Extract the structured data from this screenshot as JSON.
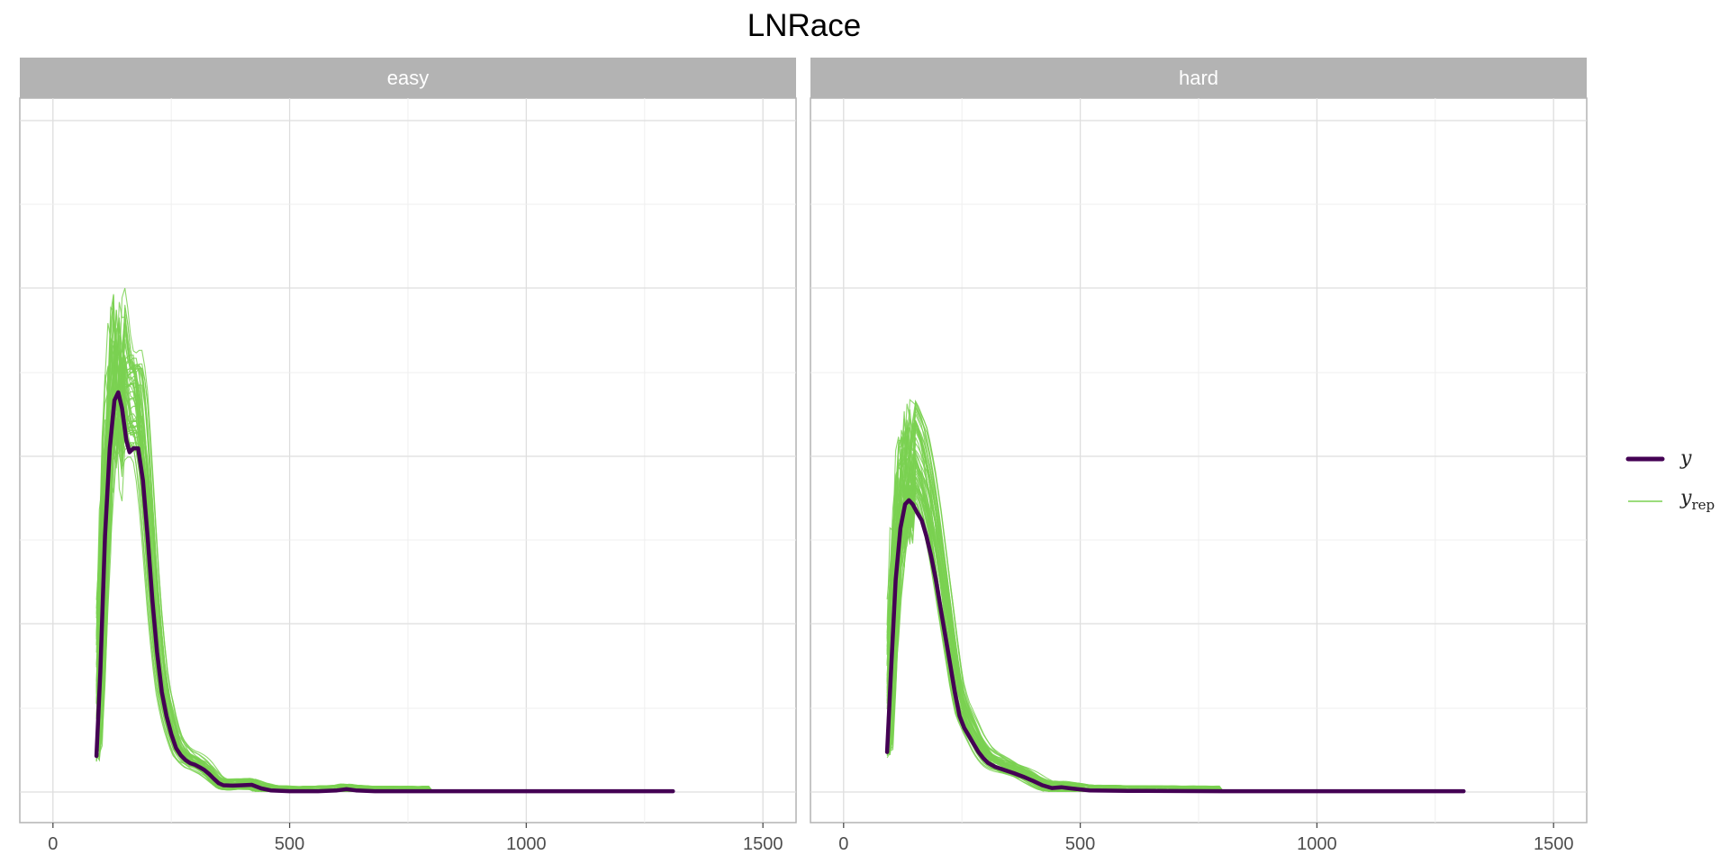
{
  "chart_data": {
    "type": "line",
    "title": "LNRace",
    "xlabel": "",
    "ylabel": "",
    "xlim": [
      -70,
      1570
    ],
    "ylim": [
      0,
      1
    ],
    "x_ticks": [
      0,
      500,
      1000,
      1500
    ],
    "y_ticks_shown": false,
    "grid": true,
    "legend_position": "right",
    "legend": [
      {
        "label": "y",
        "subscript": "",
        "color": "#440154",
        "style": "thick"
      },
      {
        "label": "y",
        "subscript": "rep",
        "color": "#7ad151",
        "style": "thin"
      }
    ],
    "panels": [
      {
        "label": "easy",
        "y_points": [
          [
            92,
            0.09
          ],
          [
            100,
            0.3
          ],
          [
            110,
            0.64
          ],
          [
            120,
            0.86
          ],
          [
            130,
            0.98
          ],
          [
            138,
            1.0
          ],
          [
            146,
            0.96
          ],
          [
            155,
            0.88
          ],
          [
            162,
            0.85
          ],
          [
            170,
            0.86
          ],
          [
            180,
            0.86
          ],
          [
            190,
            0.78
          ],
          [
            200,
            0.64
          ],
          [
            210,
            0.48
          ],
          [
            220,
            0.35
          ],
          [
            230,
            0.25
          ],
          [
            240,
            0.19
          ],
          [
            250,
            0.145
          ],
          [
            260,
            0.11
          ],
          [
            270,
            0.092
          ],
          [
            280,
            0.08
          ],
          [
            290,
            0.072
          ],
          [
            300,
            0.068
          ],
          [
            310,
            0.062
          ],
          [
            320,
            0.055
          ],
          [
            330,
            0.045
          ],
          [
            340,
            0.033
          ],
          [
            350,
            0.022
          ],
          [
            360,
            0.017
          ],
          [
            380,
            0.016
          ],
          [
            400,
            0.017
          ],
          [
            420,
            0.018
          ],
          [
            440,
            0.009
          ],
          [
            460,
            0.004
          ],
          [
            500,
            0.002
          ],
          [
            560,
            0.002
          ],
          [
            600,
            0.004
          ],
          [
            620,
            0.007
          ],
          [
            640,
            0.004
          ],
          [
            680,
            0.002
          ],
          [
            800,
            0.002
          ],
          [
            1000,
            0.002
          ],
          [
            1200,
            0.002
          ],
          [
            1310,
            0.002
          ]
        ],
        "y_color": "#440154",
        "rep_color": "#7ad151"
      },
      {
        "label": "hard",
        "y_points": [
          [
            92,
            0.1
          ],
          [
            100,
            0.3
          ],
          [
            110,
            0.53
          ],
          [
            120,
            0.66
          ],
          [
            130,
            0.72
          ],
          [
            138,
            0.73
          ],
          [
            146,
            0.72
          ],
          [
            155,
            0.7
          ],
          [
            165,
            0.68
          ],
          [
            175,
            0.64
          ],
          [
            185,
            0.59
          ],
          [
            195,
            0.53
          ],
          [
            205,
            0.46
          ],
          [
            215,
            0.39
          ],
          [
            225,
            0.32
          ],
          [
            235,
            0.25
          ],
          [
            245,
            0.19
          ],
          [
            255,
            0.16
          ],
          [
            265,
            0.14
          ],
          [
            275,
            0.12
          ],
          [
            285,
            0.1
          ],
          [
            295,
            0.085
          ],
          [
            305,
            0.073
          ],
          [
            320,
            0.063
          ],
          [
            340,
            0.055
          ],
          [
            360,
            0.047
          ],
          [
            380,
            0.038
          ],
          [
            400,
            0.028
          ],
          [
            420,
            0.017
          ],
          [
            440,
            0.01
          ],
          [
            460,
            0.012
          ],
          [
            480,
            0.009
          ],
          [
            520,
            0.004
          ],
          [
            600,
            0.003
          ],
          [
            800,
            0.002
          ],
          [
            1000,
            0.002
          ],
          [
            1200,
            0.002
          ],
          [
            1310,
            0.002
          ]
        ],
        "y_color": "#440154",
        "rep_color": "#7ad151"
      }
    ]
  }
}
